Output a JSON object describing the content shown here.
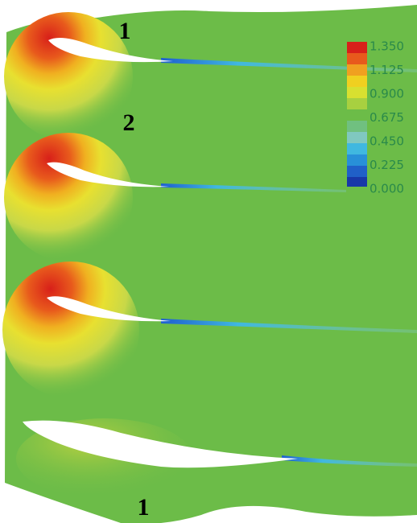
{
  "labels": [
    "1",
    "2",
    "1"
  ],
  "colorbar": {
    "ticks": [
      "1.350",
      "1.125",
      "0.900",
      "0.675",
      "0.450",
      "0.225",
      "0.000"
    ]
  }
}
